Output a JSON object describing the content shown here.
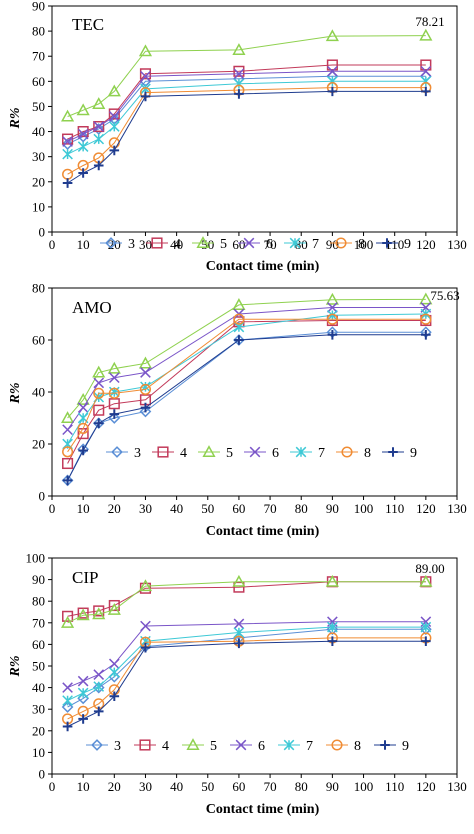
{
  "chart_data": [
    {
      "type": "line",
      "label": "TEC",
      "annotation": "78.21",
      "xlabel": "Contact time (min)",
      "ylabel": "R%",
      "xlim": [
        0,
        130
      ],
      "ylim": [
        0,
        90
      ],
      "xticks": [
        "0",
        "10",
        "20",
        "30",
        "40",
        "50",
        "60",
        "70",
        "80",
        "90",
        "100",
        "110",
        "120",
        "130"
      ],
      "yticks": [
        "0",
        "10",
        "20",
        "30",
        "40",
        "50",
        "60",
        "70",
        "80",
        "90"
      ],
      "x": [
        5,
        10,
        15,
        20,
        30,
        60,
        90,
        120
      ],
      "series": [
        {
          "name": "3",
          "values": [
            35,
            38,
            41,
            45,
            60,
            61,
            62,
            62
          ]
        },
        {
          "name": "4",
          "values": [
            37,
            40,
            42,
            47,
            63,
            64,
            66.5,
            66.5
          ]
        },
        {
          "name": "5",
          "values": [
            46,
            48.5,
            51,
            56,
            72,
            72.5,
            78,
            78.21
          ]
        },
        {
          "name": "6",
          "values": [
            36,
            39,
            42,
            46,
            62,
            63,
            64,
            64
          ]
        },
        {
          "name": "7",
          "values": [
            31,
            34,
            37,
            42,
            57,
            59,
            60,
            60
          ]
        },
        {
          "name": "8",
          "values": [
            23,
            26.5,
            29.5,
            35.5,
            55.5,
            56.5,
            57.5,
            57.5
          ]
        },
        {
          "name": "9",
          "values": [
            19.5,
            23.5,
            26.5,
            32.5,
            54,
            55,
            56,
            56
          ]
        }
      ],
      "legend": "bottom-right"
    },
    {
      "type": "line",
      "label": "AMO",
      "annotation": "75.63",
      "xlabel": "Contact time (min)",
      "ylabel": "R%",
      "xlim": [
        0,
        130
      ],
      "ylim": [
        0,
        80
      ],
      "xticks": [
        "0",
        "10",
        "20",
        "30",
        "40",
        "50",
        "60",
        "70",
        "80",
        "90",
        "100",
        "110",
        "120",
        "130"
      ],
      "yticks": [
        "0",
        "20",
        "40",
        "60",
        "80"
      ],
      "x": [
        5,
        10,
        15,
        20,
        30,
        60,
        90,
        120
      ],
      "series": [
        {
          "name": "3",
          "values": [
            6,
            18,
            28,
            30,
            32.5,
            60,
            63,
            63
          ]
        },
        {
          "name": "4",
          "values": [
            12.5,
            24,
            33,
            35.5,
            37,
            67,
            67.5,
            67.5
          ]
        },
        {
          "name": "5",
          "values": [
            30,
            37,
            47.5,
            49,
            51,
            73.5,
            75.5,
            75.63
          ]
        },
        {
          "name": "6",
          "values": [
            25.5,
            34,
            43.5,
            45.5,
            47.5,
            70,
            72.5,
            72.5
          ]
        },
        {
          "name": "7",
          "values": [
            20,
            30,
            38,
            40,
            42,
            65,
            69.5,
            70
          ]
        },
        {
          "name": "8",
          "values": [
            17,
            26,
            39.5,
            39.5,
            41,
            68,
            68,
            68
          ]
        },
        {
          "name": "9",
          "values": [
            6,
            17.5,
            28,
            31.5,
            34,
            60,
            62,
            62
          ]
        }
      ],
      "legend": "bottom-right"
    },
    {
      "type": "line",
      "label": "CIP",
      "annotation": "89.00",
      "xlabel": "Contact time (min)",
      "ylabel": "R%",
      "xlim": [
        0,
        130
      ],
      "ylim": [
        0,
        100
      ],
      "xticks": [
        "0",
        "10",
        "20",
        "30",
        "40",
        "50",
        "60",
        "70",
        "80",
        "90",
        "100",
        "110",
        "120",
        "130"
      ],
      "yticks": [
        "0",
        "10",
        "20",
        "30",
        "40",
        "50",
        "60",
        "70",
        "80",
        "90",
        "100"
      ],
      "x": [
        5,
        10,
        15,
        20,
        30,
        60,
        90,
        120
      ],
      "series": [
        {
          "name": "3",
          "values": [
            31,
            35,
            40,
            45,
            59,
            63,
            67,
            67
          ]
        },
        {
          "name": "4",
          "values": [
            73,
            74.5,
            75.5,
            78,
            86,
            86.5,
            89,
            89
          ]
        },
        {
          "name": "5",
          "values": [
            70,
            73.5,
            74,
            76,
            87,
            89,
            89,
            89.0
          ]
        },
        {
          "name": "6",
          "values": [
            40,
            43,
            46,
            51,
            68.5,
            69.5,
            70.5,
            70.5
          ]
        },
        {
          "name": "7",
          "values": [
            34,
            37.5,
            40.5,
            47,
            61.5,
            65.5,
            68,
            68
          ]
        },
        {
          "name": "8",
          "values": [
            25.5,
            29,
            32.5,
            39,
            61,
            61.5,
            63,
            63
          ]
        },
        {
          "name": "9",
          "values": [
            22,
            25.5,
            29,
            36,
            58.5,
            60.5,
            61.5,
            61.5
          ]
        }
      ],
      "legend": "bottom-right"
    }
  ],
  "series_style": {
    "3": {
      "color": "#5b8fd6",
      "marker": "diamond"
    },
    "4": {
      "color": "#c23a5a",
      "marker": "square"
    },
    "5": {
      "color": "#8fd14f",
      "marker": "triangle"
    },
    "6": {
      "color": "#7a55c8",
      "marker": "x"
    },
    "7": {
      "color": "#3ec9d6",
      "marker": "asterisk"
    },
    "8": {
      "color": "#f08c34",
      "marker": "circle"
    },
    "9": {
      "color": "#1f3c8f",
      "marker": "plus"
    }
  }
}
